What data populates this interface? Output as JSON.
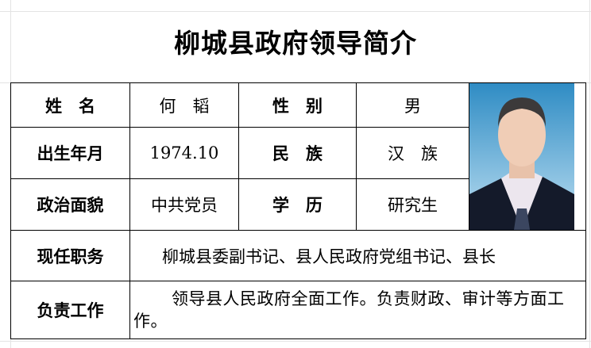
{
  "title": "柳城县政府领导简介",
  "rows": {
    "name_label": "姓　名",
    "name_value": "何　韬",
    "gender_label": "性　别",
    "gender_value": "男",
    "birth_label": "出生年月",
    "birth_value": "1974.10",
    "ethnicity_label": "民　族",
    "ethnicity_value": "汉　族",
    "political_label": "政治面貌",
    "political_value": "中共党员",
    "education_label": "学　历",
    "education_value": "研究生",
    "position_label": "现任职务",
    "position_value": "柳城县委副书记、县人民政府党组书记、县长",
    "duty_label": "负责工作",
    "duty_value": "领导县人民政府全面工作。负责财政、审计等方面工作。"
  }
}
